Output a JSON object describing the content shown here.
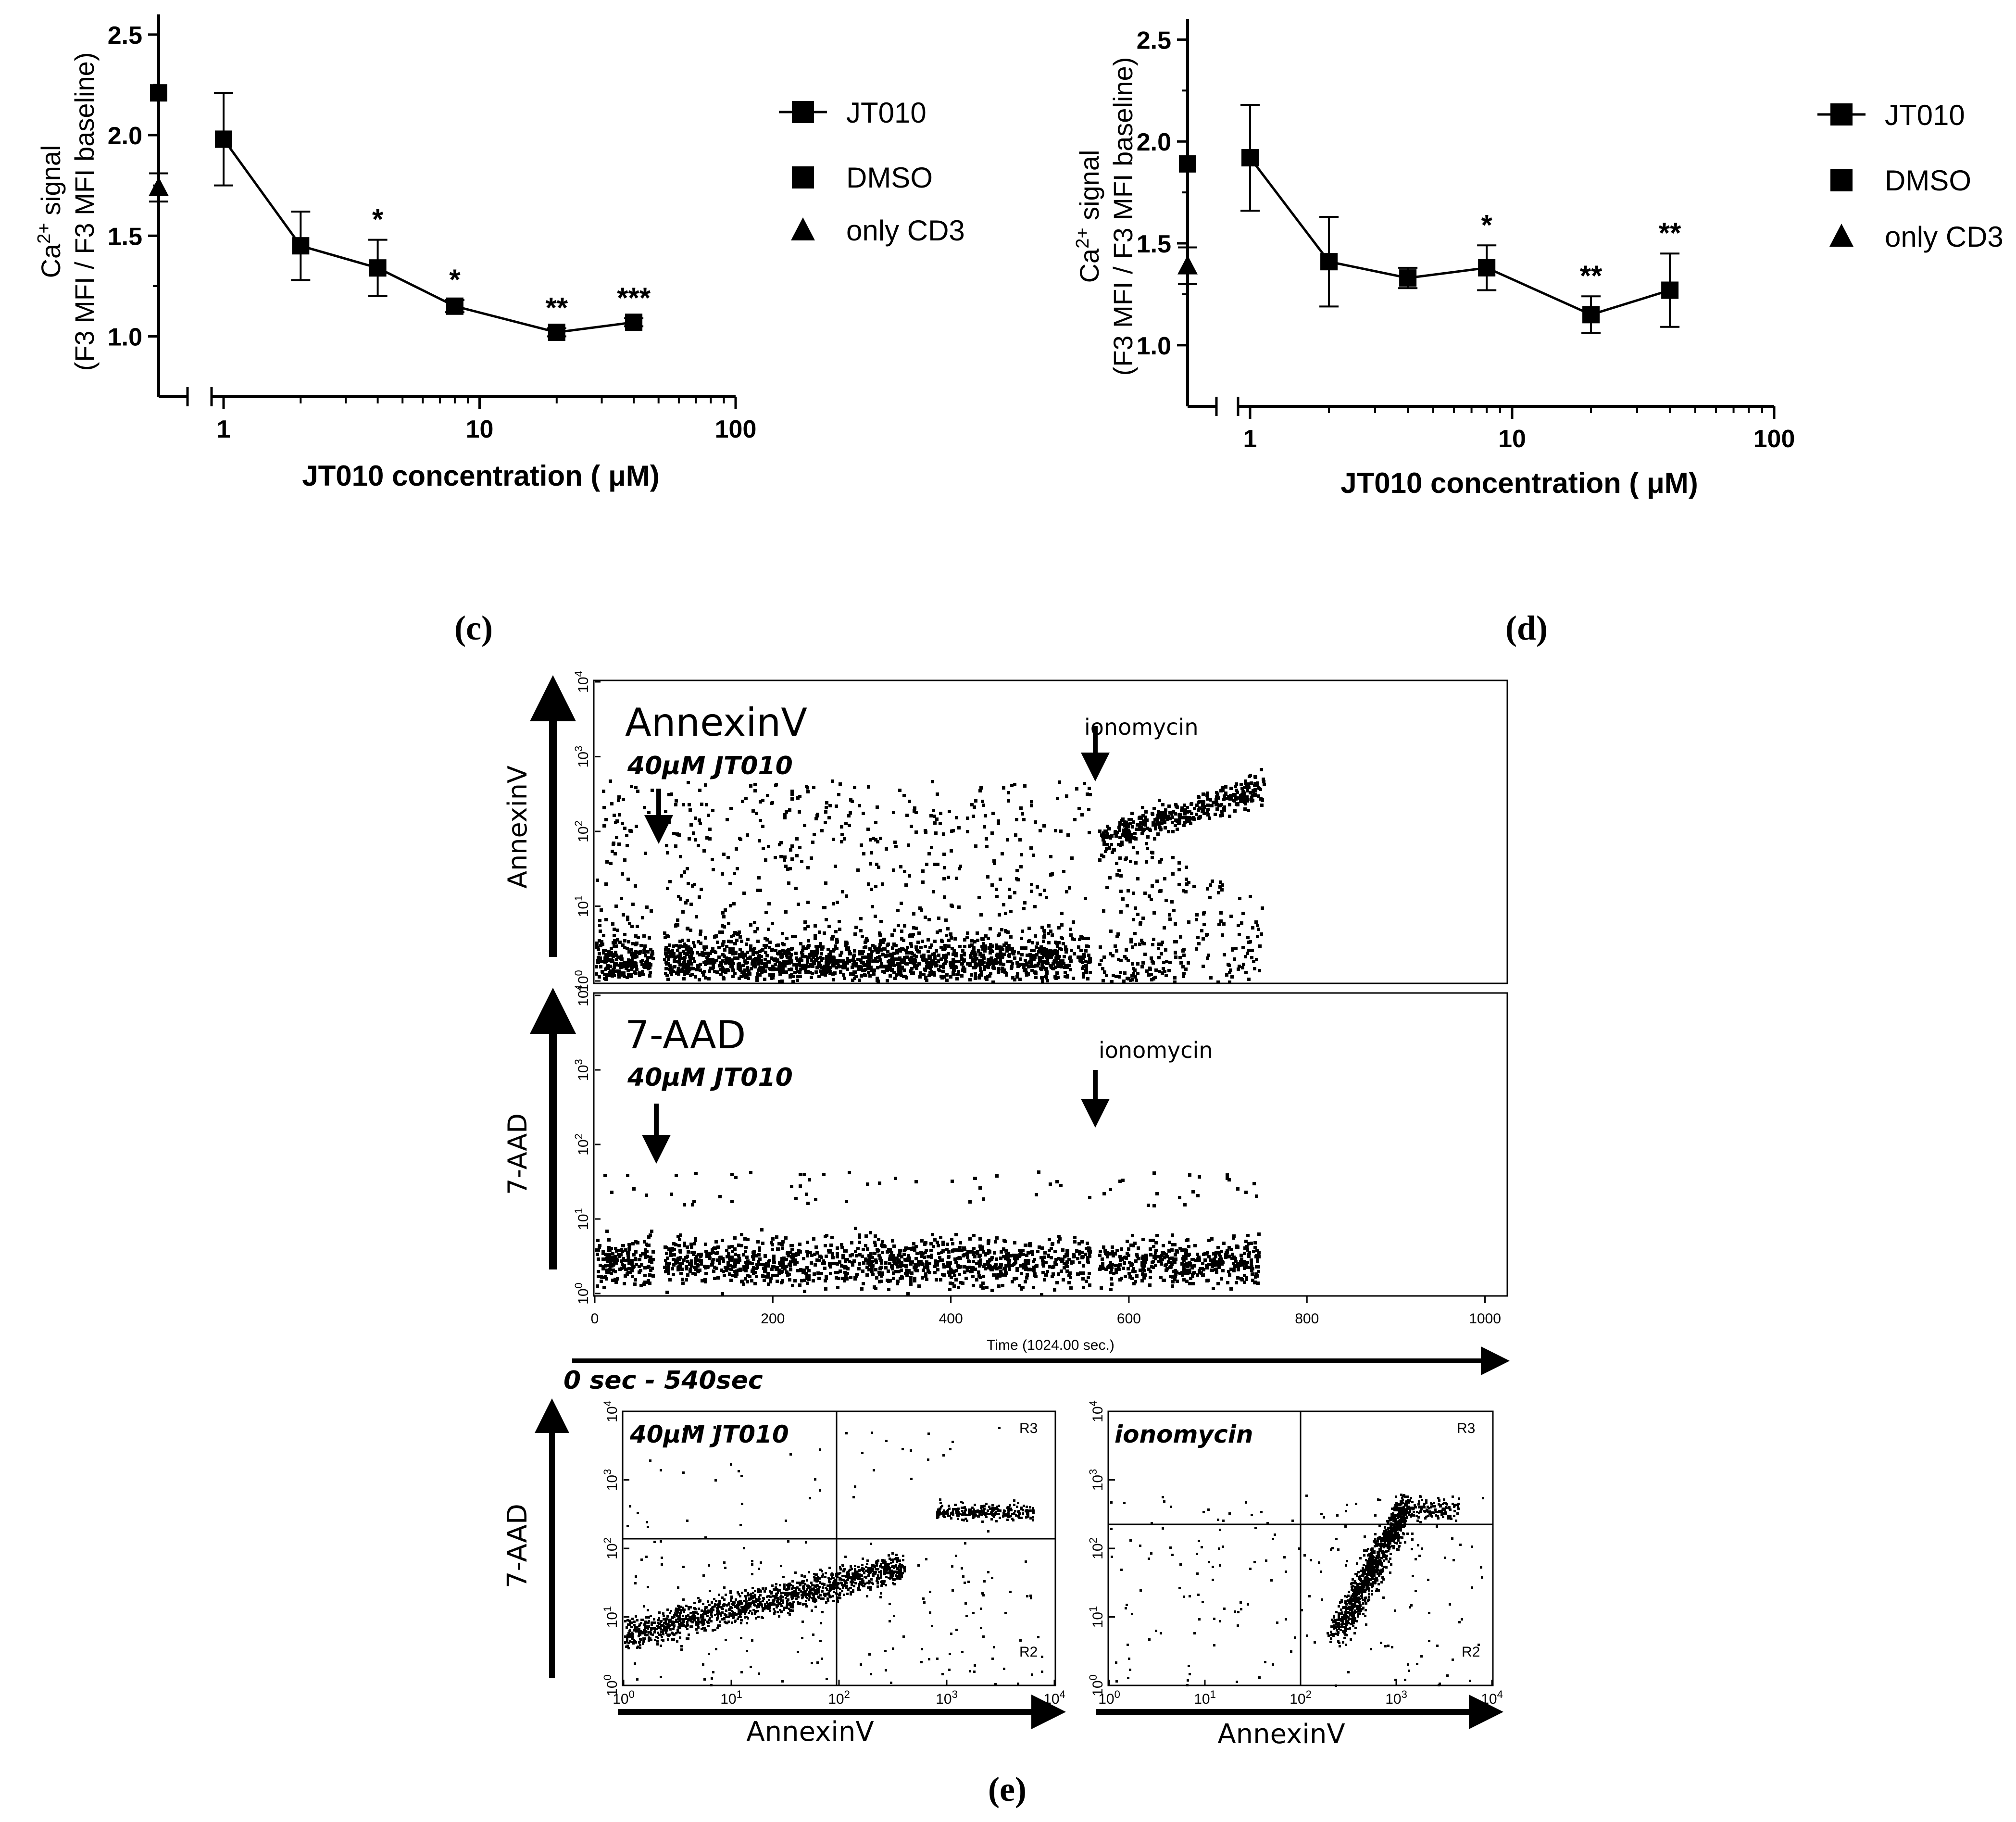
{
  "figure": {
    "panels": {
      "c": {
        "label": "(c)"
      },
      "d": {
        "label": "(d)"
      },
      "e": {
        "label": "(e)"
      }
    }
  },
  "chart_data": [
    {
      "id": "c",
      "type": "scatter",
      "xscale": "log",
      "xlim": [
        1,
        100
      ],
      "ylim": [
        0.7,
        2.6
      ],
      "xlabel": "JT010 concentration ( μM)",
      "ylabel_line1": "Ca",
      "ylabel_sup": "2+",
      "ylabel_line1_suffix": " signal",
      "ylabel_line2": "(F3 MFI / F3 MFI baseline)",
      "x_ticks": [
        1,
        10,
        100
      ],
      "x_tick_labels": [
        "1",
        "10",
        "100"
      ],
      "y_ticks": [
        1.0,
        1.5,
        2.0,
        2.5
      ],
      "y_tick_labels": [
        "1.0",
        "1.5",
        "2.0",
        "2.5"
      ],
      "series": [
        {
          "name": "JT010",
          "marker": "square",
          "line": true,
          "x": [
            1,
            2,
            4,
            8,
            20,
            40
          ],
          "y": [
            1.98,
            1.45,
            1.34,
            1.15,
            1.02,
            1.07
          ],
          "err": [
            0.23,
            0.17,
            0.14,
            0.03,
            0.02,
            0.02
          ],
          "annotations": [
            "",
            "",
            "*",
            "*",
            "**",
            "***"
          ]
        },
        {
          "name": "DMSO",
          "marker": "square",
          "line": false,
          "y": 2.21,
          "err": 0.0
        },
        {
          "name": "only CD3",
          "marker": "triangle",
          "line": false,
          "y": 1.74,
          "err": 0.07
        }
      ],
      "legend": [
        "JT010",
        "DMSO",
        "only CD3"
      ],
      "legend_position": "right"
    },
    {
      "id": "d",
      "type": "scatter",
      "xscale": "log",
      "xlim": [
        1,
        100
      ],
      "ylim": [
        0.7,
        2.6
      ],
      "xlabel": "JT010 concentration ( μM)",
      "ylabel_line1": "Ca",
      "ylabel_sup": "2+",
      "ylabel_line1_suffix": " signal",
      "ylabel_line2": "(F3 MFI / F3 MFI baseline)",
      "x_ticks": [
        1,
        10,
        100
      ],
      "x_tick_labels": [
        "1",
        "10",
        "100"
      ],
      "y_ticks": [
        1.0,
        1.5,
        2.0,
        2.5
      ],
      "y_tick_labels": [
        "1.0",
        "1.5",
        "2.0",
        "2.5"
      ],
      "series": [
        {
          "name": "JT010",
          "marker": "square",
          "line": true,
          "x": [
            1,
            2,
            4,
            8,
            20,
            40
          ],
          "y": [
            1.92,
            1.41,
            1.33,
            1.38,
            1.15,
            1.27
          ],
          "err": [
            0.26,
            0.22,
            0.05,
            0.11,
            0.09,
            0.18
          ],
          "annotations": [
            "",
            "",
            "",
            "*",
            "**",
            "**"
          ]
        },
        {
          "name": "DMSO",
          "marker": "square",
          "line": false,
          "y": 1.89,
          "err": 0.0
        },
        {
          "name": "only CD3",
          "marker": "triangle",
          "line": false,
          "y": 1.39,
          "err": 0.09
        }
      ],
      "legend": [
        "JT010",
        "DMSO",
        "only CD3"
      ],
      "legend_position": "right"
    },
    {
      "id": "e-annexin-time",
      "type": "scatter",
      "title": "AnnexinV",
      "ylabel": "AnnexinV",
      "yscale": "log",
      "ylim": [
        1,
        10000
      ],
      "xlim": [
        0,
        1024
      ],
      "y_tick_exponents": [
        "0",
        "1",
        "2",
        "3",
        "4"
      ],
      "annotations": [
        {
          "text": "40µM JT010",
          "x": 70
        },
        {
          "text": "ionomycin",
          "x": 560
        }
      ],
      "populations": [
        {
          "x_range": [
            0,
            555
          ],
          "y_range": [
            1,
            600
          ],
          "description": "low AnnexinV before ionomycin"
        },
        {
          "x_range": [
            565,
            745
          ],
          "y_range": [
            30,
            600
          ],
          "description": "AnnexinV rise after ionomycin"
        }
      ]
    },
    {
      "id": "e-7aad-time",
      "type": "scatter",
      "title": "7-AAD",
      "ylabel": "7-AAD",
      "xlabel": "Time (1024.00 sec.)",
      "yscale": "log",
      "ylim": [
        1,
        10000
      ],
      "xlim": [
        0,
        1024
      ],
      "x_ticks": [
        0,
        200,
        400,
        600,
        800,
        1000
      ],
      "x_tick_labels": [
        "0",
        "200",
        "400",
        "600",
        "800",
        "1000"
      ],
      "y_tick_exponents": [
        "0",
        "1",
        "2",
        "3",
        "4"
      ],
      "annotations": [
        {
          "text": "40µM JT010",
          "x": 70
        },
        {
          "text": "ionomycin",
          "x": 560
        }
      ],
      "range_label": "0 sec - 540sec",
      "populations": [
        {
          "x_range": [
            0,
            745
          ],
          "y_range": [
            1,
            20
          ],
          "description": "7-AAD stays low"
        }
      ]
    },
    {
      "id": "e-quadrant-jt010",
      "type": "scatter",
      "title": "40µM JT010",
      "xlabel": "AnnexinV",
      "ylabel": "7-AAD",
      "xscale": "log",
      "yscale": "log",
      "xlim": [
        1,
        10000
      ],
      "ylim": [
        1,
        10000
      ],
      "tick_exponents": [
        "0",
        "1",
        "2",
        "3",
        "4"
      ],
      "gate_x": 100,
      "gate_y": 100,
      "regions": [
        "R3",
        "R2"
      ]
    },
    {
      "id": "e-quadrant-ionomycin",
      "type": "scatter",
      "title": "ionomycin",
      "xlabel": "AnnexinV",
      "xscale": "log",
      "yscale": "log",
      "xlim": [
        1,
        10000
      ],
      "ylim": [
        1,
        10000
      ],
      "tick_exponents": [
        "0",
        "1",
        "2",
        "3",
        "4"
      ],
      "gate_x": 100,
      "gate_y": 200,
      "regions": [
        "R3",
        "R2"
      ]
    }
  ]
}
